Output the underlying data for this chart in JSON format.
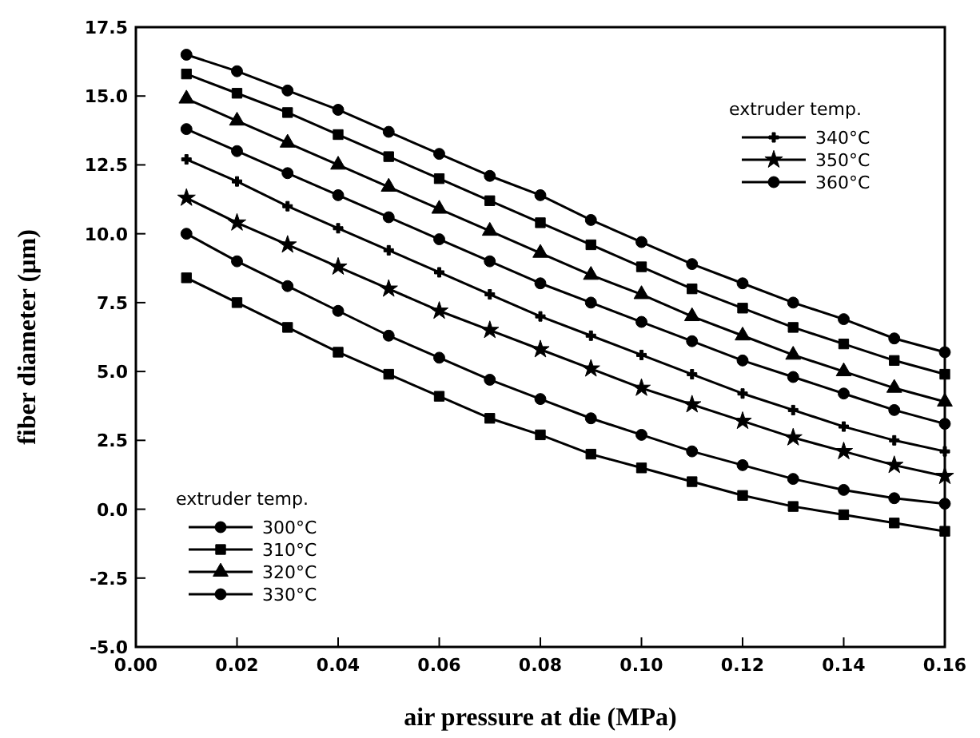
{
  "chart_data": {
    "type": "line",
    "xlabel": "air pressure at die (MPa)",
    "ylabel": "fiber diameter (µm)",
    "legend_title": "extruder temp.",
    "legend": "bottom left",
    "x": [
      0.01,
      0.02,
      0.03,
      0.04,
      0.05,
      0.06,
      0.07,
      0.08,
      0.09,
      0.1,
      0.11,
      0.12,
      0.13,
      0.14,
      0.15,
      0.16
    ],
    "xlim": [
      0,
      0.16
    ],
    "xticks": [
      {
        "value": 0,
        "label": "0.00"
      },
      {
        "value": 0.02,
        "label": "0.02"
      },
      {
        "value": 0.04,
        "label": "0.04"
      },
      {
        "value": 0.06,
        "label": "0.06"
      },
      {
        "value": 0.08,
        "label": "0.08"
      },
      {
        "value": 0.1,
        "label": "0.10"
      },
      {
        "value": 0.12,
        "label": "0.12"
      },
      {
        "value": 0.14,
        "label": "0.14"
      },
      {
        "value": 0.16,
        "label": "0.16"
      }
    ],
    "ylim": [
      -5,
      17.5
    ],
    "yticks": [
      {
        "value": -5,
        "label": "-5.0"
      },
      {
        "value": -2.5,
        "label": "-2.5"
      },
      {
        "value": 0,
        "label": "0.0"
      },
      {
        "value": 2.5,
        "label": "2.5"
      },
      {
        "value": 5,
        "label": "5.0"
      },
      {
        "value": 7.5,
        "label": "7.5"
      },
      {
        "value": 10,
        "label": "10.0"
      },
      {
        "value": 12.5,
        "label": "12.5"
      },
      {
        "value": 15,
        "label": "15.0"
      },
      {
        "value": 17.5,
        "label": "17.5"
      }
    ],
    "grid": false,
    "line_style": "solid",
    "series": [
      {
        "name": "300°C",
        "color": "#000000",
        "marker": "circle",
        "values": [
          16.5,
          15.9,
          15.2,
          14.5,
          13.7,
          12.9,
          12.1,
          11.4,
          10.5,
          9.7,
          8.9,
          8.2,
          7.5,
          6.9,
          6.2,
          5.7
        ]
      },
      {
        "name": "310°C",
        "color": "#000000",
        "marker": "square",
        "values": [
          15.8,
          15.1,
          14.4,
          13.6,
          12.8,
          12.0,
          11.2,
          10.4,
          9.6,
          8.8,
          8.0,
          7.3,
          6.6,
          6.0,
          5.4,
          4.9
        ]
      },
      {
        "name": "320°C",
        "color": "#000000",
        "marker": "triangle",
        "values": [
          14.9,
          14.1,
          13.3,
          12.5,
          11.7,
          10.9,
          10.1,
          9.3,
          8.5,
          7.8,
          7.0,
          6.3,
          5.6,
          5.0,
          4.4,
          3.9
        ]
      },
      {
        "name": "330°C",
        "color": "#000000",
        "marker": "circle",
        "values": [
          13.8,
          13.0,
          12.2,
          11.4,
          10.6,
          9.8,
          9.0,
          8.2,
          7.5,
          6.8,
          6.1,
          5.4,
          4.8,
          4.2,
          3.6,
          3.1
        ]
      },
      {
        "name": "340°C",
        "color": "#000000",
        "marker": "cross",
        "values": [
          12.7,
          11.9,
          11.0,
          10.2,
          9.4,
          8.6,
          7.8,
          7.0,
          6.3,
          5.6,
          4.9,
          4.2,
          3.6,
          3.0,
          2.5,
          2.1
        ]
      },
      {
        "name": "350°C",
        "color": "#000000",
        "marker": "star",
        "values": [
          11.3,
          10.4,
          9.6,
          8.8,
          8.0,
          7.2,
          6.5,
          5.8,
          5.1,
          4.4,
          3.8,
          3.2,
          2.6,
          2.1,
          1.6,
          1.2
        ]
      },
      {
        "name": "360°C",
        "color": "#000000",
        "marker": "circle",
        "values": [
          10.0,
          9.0,
          8.1,
          7.2,
          6.3,
          5.5,
          4.7,
          4.0,
          3.3,
          2.7,
          2.1,
          1.6,
          1.1,
          0.7,
          0.4,
          0.2
        ]
      },
      {
        "color": "#000000",
        "marker": "square",
        "values": [
          8.4,
          7.5,
          6.6,
          5.7,
          4.9,
          4.1,
          3.3,
          2.7,
          2.0,
          1.5,
          1.0,
          0.5,
          0.1,
          -0.2,
          -0.5,
          -0.8
        ]
      }
    ]
  }
}
